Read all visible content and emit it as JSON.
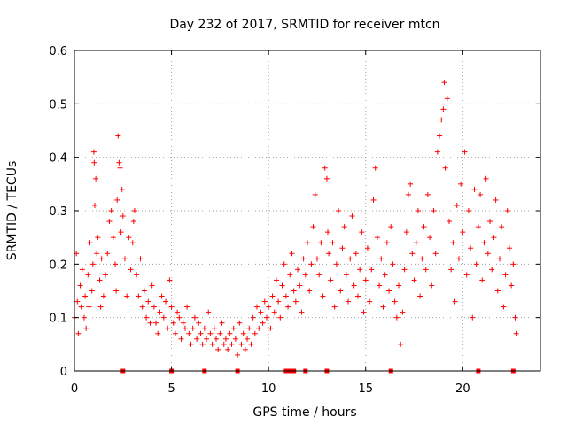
{
  "chart_data": {
    "type": "scatter",
    "title": "Day 232 of 2017, SRMTID for receiver mtcn",
    "xlabel": "GPS time / hours",
    "ylabel": "SRMTID / TECUs",
    "xlim": [
      0,
      24
    ],
    "ylim": [
      0,
      0.6
    ],
    "xticks": [
      0,
      5,
      10,
      15,
      20
    ],
    "xtick_labels": [
      "0",
      "5",
      "10",
      "15",
      "20"
    ],
    "yticks": [
      0,
      0.1,
      0.2,
      0.3,
      0.4,
      0.5,
      0.6
    ],
    "ytick_labels": [
      "0",
      "0.1",
      "0.2",
      "0.3",
      "0.4",
      "0.5",
      "0.6"
    ],
    "grid": true,
    "marker": "+",
    "color": "#ff0000",
    "series": [
      {
        "name": "SRMTID",
        "points": [
          [
            0.0,
            0.1
          ],
          [
            0.1,
            0.22
          ],
          [
            0.15,
            0.13
          ],
          [
            0.2,
            0.07
          ],
          [
            0.3,
            0.16
          ],
          [
            0.35,
            0.12
          ],
          [
            0.4,
            0.19
          ],
          [
            0.5,
            0.1
          ],
          [
            0.55,
            0.14
          ],
          [
            0.6,
            0.08
          ],
          [
            0.7,
            0.18
          ],
          [
            0.75,
            0.12
          ],
          [
            0.8,
            0.24
          ],
          [
            0.9,
            0.15
          ],
          [
            0.95,
            0.2
          ],
          [
            1.0,
            0.41
          ],
          [
            1.02,
            0.39
          ],
          [
            1.05,
            0.31
          ],
          [
            1.1,
            0.36
          ],
          [
            1.15,
            0.22
          ],
          [
            1.2,
            0.25
          ],
          [
            1.3,
            0.17
          ],
          [
            1.35,
            0.12
          ],
          [
            1.4,
            0.21
          ],
          [
            1.5,
            0.14
          ],
          [
            1.6,
            0.18
          ],
          [
            1.7,
            0.22
          ],
          [
            1.8,
            0.28
          ],
          [
            1.9,
            0.3
          ],
          [
            2.0,
            0.25
          ],
          [
            2.1,
            0.2
          ],
          [
            2.15,
            0.15
          ],
          [
            2.2,
            0.32
          ],
          [
            2.25,
            0.44
          ],
          [
            2.3,
            0.39
          ],
          [
            2.35,
            0.38
          ],
          [
            2.4,
            0.26
          ],
          [
            2.45,
            0.34
          ],
          [
            2.5,
            0.29
          ],
          [
            2.6,
            0.21
          ],
          [
            2.7,
            0.14
          ],
          [
            2.8,
            0.25
          ],
          [
            2.9,
            0.19
          ],
          [
            3.0,
            0.24
          ],
          [
            3.05,
            0.28
          ],
          [
            3.1,
            0.3
          ],
          [
            3.2,
            0.18
          ],
          [
            3.3,
            0.14
          ],
          [
            3.4,
            0.21
          ],
          [
            3.5,
            0.12
          ],
          [
            3.6,
            0.15
          ],
          [
            3.7,
            0.1
          ],
          [
            3.8,
            0.13
          ],
          [
            3.9,
            0.09
          ],
          [
            4.0,
            0.16
          ],
          [
            4.1,
            0.12
          ],
          [
            4.2,
            0.09
          ],
          [
            4.3,
            0.07
          ],
          [
            4.4,
            0.11
          ],
          [
            4.5,
            0.14
          ],
          [
            4.6,
            0.1
          ],
          [
            4.7,
            0.13
          ],
          [
            4.8,
            0.08
          ],
          [
            4.9,
            0.17
          ],
          [
            5.0,
            0.12
          ],
          [
            5.1,
            0.09
          ],
          [
            5.2,
            0.07
          ],
          [
            5.3,
            0.11
          ],
          [
            5.4,
            0.1
          ],
          [
            5.5,
            0.06
          ],
          [
            5.6,
            0.09
          ],
          [
            5.7,
            0.08
          ],
          [
            5.8,
            0.12
          ],
          [
            5.9,
            0.07
          ],
          [
            6.0,
            0.05
          ],
          [
            6.1,
            0.08
          ],
          [
            6.2,
            0.1
          ],
          [
            6.3,
            0.06
          ],
          [
            6.4,
            0.09
          ],
          [
            6.5,
            0.07
          ],
          [
            6.6,
            0.05
          ],
          [
            6.7,
            0.08
          ],
          [
            6.8,
            0.06
          ],
          [
            6.9,
            0.11
          ],
          [
            7.0,
            0.07
          ],
          [
            7.1,
            0.05
          ],
          [
            7.2,
            0.08
          ],
          [
            7.3,
            0.06
          ],
          [
            7.4,
            0.04
          ],
          [
            7.5,
            0.07
          ],
          [
            7.6,
            0.09
          ],
          [
            7.7,
            0.05
          ],
          [
            7.8,
            0.06
          ],
          [
            7.9,
            0.04
          ],
          [
            8.0,
            0.07
          ],
          [
            8.1,
            0.05
          ],
          [
            8.2,
            0.08
          ],
          [
            8.3,
            0.06
          ],
          [
            8.4,
            0.03
          ],
          [
            8.5,
            0.09
          ],
          [
            8.6,
            0.05
          ],
          [
            8.7,
            0.07
          ],
          [
            8.8,
            0.04
          ],
          [
            8.9,
            0.06
          ],
          [
            9.0,
            0.08
          ],
          [
            9.1,
            0.05
          ],
          [
            9.2,
            0.1
          ],
          [
            9.3,
            0.07
          ],
          [
            9.4,
            0.12
          ],
          [
            9.5,
            0.08
          ],
          [
            9.6,
            0.11
          ],
          [
            9.7,
            0.09
          ],
          [
            9.8,
            0.13
          ],
          [
            9.9,
            0.1
          ],
          [
            10.0,
            0.12
          ],
          [
            10.1,
            0.08
          ],
          [
            10.2,
            0.14
          ],
          [
            10.3,
            0.11
          ],
          [
            10.4,
            0.17
          ],
          [
            10.5,
            0.13
          ],
          [
            10.6,
            0.1
          ],
          [
            10.7,
            0.16
          ],
          [
            10.8,
            0.2
          ],
          [
            10.9,
            0.14
          ],
          [
            11.0,
            0.12
          ],
          [
            11.1,
            0.18
          ],
          [
            11.2,
            0.22
          ],
          [
            11.3,
            0.15
          ],
          [
            11.4,
            0.13
          ],
          [
            11.5,
            0.19
          ],
          [
            11.6,
            0.16
          ],
          [
            11.7,
            0.11
          ],
          [
            11.8,
            0.21
          ],
          [
            11.9,
            0.18
          ],
          [
            12.0,
            0.24
          ],
          [
            12.1,
            0.15
          ],
          [
            12.2,
            0.2
          ],
          [
            12.3,
            0.27
          ],
          [
            12.4,
            0.33
          ],
          [
            12.5,
            0.21
          ],
          [
            12.6,
            0.18
          ],
          [
            12.7,
            0.24
          ],
          [
            12.8,
            0.14
          ],
          [
            12.9,
            0.38
          ],
          [
            13.0,
            0.36
          ],
          [
            13.05,
            0.26
          ],
          [
            13.1,
            0.22
          ],
          [
            13.2,
            0.17
          ],
          [
            13.3,
            0.24
          ],
          [
            13.4,
            0.12
          ],
          [
            13.5,
            0.2
          ],
          [
            13.6,
            0.3
          ],
          [
            13.7,
            0.15
          ],
          [
            13.8,
            0.23
          ],
          [
            13.9,
            0.27
          ],
          [
            14.0,
            0.18
          ],
          [
            14.1,
            0.13
          ],
          [
            14.2,
            0.21
          ],
          [
            14.3,
            0.29
          ],
          [
            14.4,
            0.16
          ],
          [
            14.5,
            0.22
          ],
          [
            14.6,
            0.14
          ],
          [
            14.7,
            0.19
          ],
          [
            14.8,
            0.26
          ],
          [
            14.9,
            0.11
          ],
          [
            15.0,
            0.17
          ],
          [
            15.1,
            0.23
          ],
          [
            15.2,
            0.13
          ],
          [
            15.3,
            0.19
          ],
          [
            15.4,
            0.32
          ],
          [
            15.5,
            0.38
          ],
          [
            15.6,
            0.25
          ],
          [
            15.7,
            0.16
          ],
          [
            15.8,
            0.21
          ],
          [
            15.9,
            0.12
          ],
          [
            16.0,
            0.18
          ],
          [
            16.1,
            0.24
          ],
          [
            16.2,
            0.15
          ],
          [
            16.3,
            0.27
          ],
          [
            16.4,
            0.2
          ],
          [
            16.5,
            0.13
          ],
          [
            16.6,
            0.1
          ],
          [
            16.7,
            0.16
          ],
          [
            16.8,
            0.05
          ],
          [
            16.9,
            0.11
          ],
          [
            17.0,
            0.19
          ],
          [
            17.1,
            0.26
          ],
          [
            17.2,
            0.33
          ],
          [
            17.3,
            0.35
          ],
          [
            17.4,
            0.22
          ],
          [
            17.5,
            0.17
          ],
          [
            17.6,
            0.24
          ],
          [
            17.7,
            0.3
          ],
          [
            17.8,
            0.14
          ],
          [
            17.9,
            0.21
          ],
          [
            18.0,
            0.27
          ],
          [
            18.1,
            0.19
          ],
          [
            18.2,
            0.33
          ],
          [
            18.3,
            0.25
          ],
          [
            18.4,
            0.16
          ],
          [
            18.5,
            0.3
          ],
          [
            18.6,
            0.22
          ],
          [
            18.7,
            0.41
          ],
          [
            18.8,
            0.44
          ],
          [
            18.9,
            0.47
          ],
          [
            19.0,
            0.49
          ],
          [
            19.05,
            0.54
          ],
          [
            19.1,
            0.38
          ],
          [
            19.2,
            0.51
          ],
          [
            19.3,
            0.28
          ],
          [
            19.4,
            0.19
          ],
          [
            19.5,
            0.24
          ],
          [
            19.6,
            0.13
          ],
          [
            19.7,
            0.31
          ],
          [
            19.8,
            0.21
          ],
          [
            19.9,
            0.35
          ],
          [
            20.0,
            0.26
          ],
          [
            20.1,
            0.41
          ],
          [
            20.2,
            0.18
          ],
          [
            20.3,
            0.3
          ],
          [
            20.4,
            0.23
          ],
          [
            20.5,
            0.1
          ],
          [
            20.6,
            0.34
          ],
          [
            20.7,
            0.2
          ],
          [
            20.8,
            0.27
          ],
          [
            20.9,
            0.33
          ],
          [
            21.0,
            0.17
          ],
          [
            21.1,
            0.24
          ],
          [
            21.2,
            0.36
          ],
          [
            21.3,
            0.22
          ],
          [
            21.4,
            0.28
          ],
          [
            21.5,
            0.19
          ],
          [
            21.6,
            0.25
          ],
          [
            21.7,
            0.32
          ],
          [
            21.8,
            0.15
          ],
          [
            21.9,
            0.21
          ],
          [
            22.0,
            0.27
          ],
          [
            22.1,
            0.12
          ],
          [
            22.2,
            0.18
          ],
          [
            22.3,
            0.3
          ],
          [
            22.4,
            0.23
          ],
          [
            22.5,
            0.16
          ],
          [
            22.6,
            0.2
          ],
          [
            22.7,
            0.1
          ],
          [
            22.75,
            0.07
          ]
        ]
      }
    ],
    "gap_markers_x": [
      2.5,
      5.0,
      6.7,
      8.4,
      10.9,
      11.1,
      11.3,
      11.9,
      13.0,
      16.3,
      20.8,
      22.6
    ]
  }
}
